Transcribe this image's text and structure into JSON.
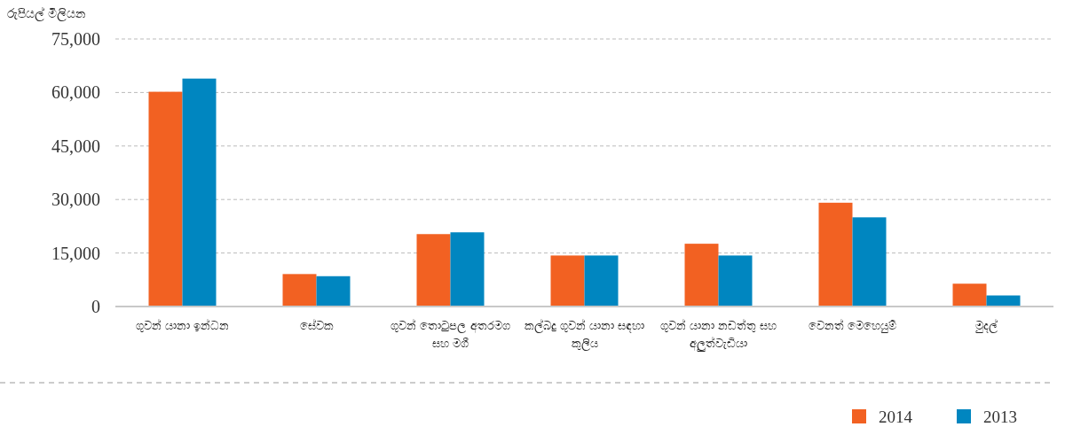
{
  "chart_data": {
    "type": "bar",
    "ylabel": "රුපියල් මිලියන",
    "categories": [
      "ගුවන් යානා ඉන්ධන",
      "සේවක",
      "ගුවන් තොටුපල අතරමග සහ මගී",
      "කල්බදු ගුවන් යානා සඳහා කුලිය",
      "ගුවන් යානා නඩත්තු සහ අලුත්වැඩියා",
      "වෙනත් මෙහෙයුම්",
      "මුදල්"
    ],
    "series": [
      {
        "name": "2014",
        "color": "#f26122",
        "values": [
          60200,
          9100,
          20300,
          14300,
          17600,
          29100,
          6400
        ]
      },
      {
        "name": "2013",
        "color": "#0086c0",
        "values": [
          63900,
          8500,
          20800,
          14300,
          14300,
          25000,
          3100
        ]
      }
    ],
    "ylim": [
      0,
      75000
    ],
    "yticks": [
      {
        "value": 0,
        "label": "0"
      },
      {
        "value": 15000,
        "label": "15,000"
      },
      {
        "value": 30000,
        "label": "30,000"
      },
      {
        "value": 45000,
        "label": "45,000"
      },
      {
        "value": 60000,
        "label": "60,000"
      },
      {
        "value": 75000,
        "label": "75,000"
      }
    ],
    "grid": "y",
    "legend": "bottom right"
  }
}
